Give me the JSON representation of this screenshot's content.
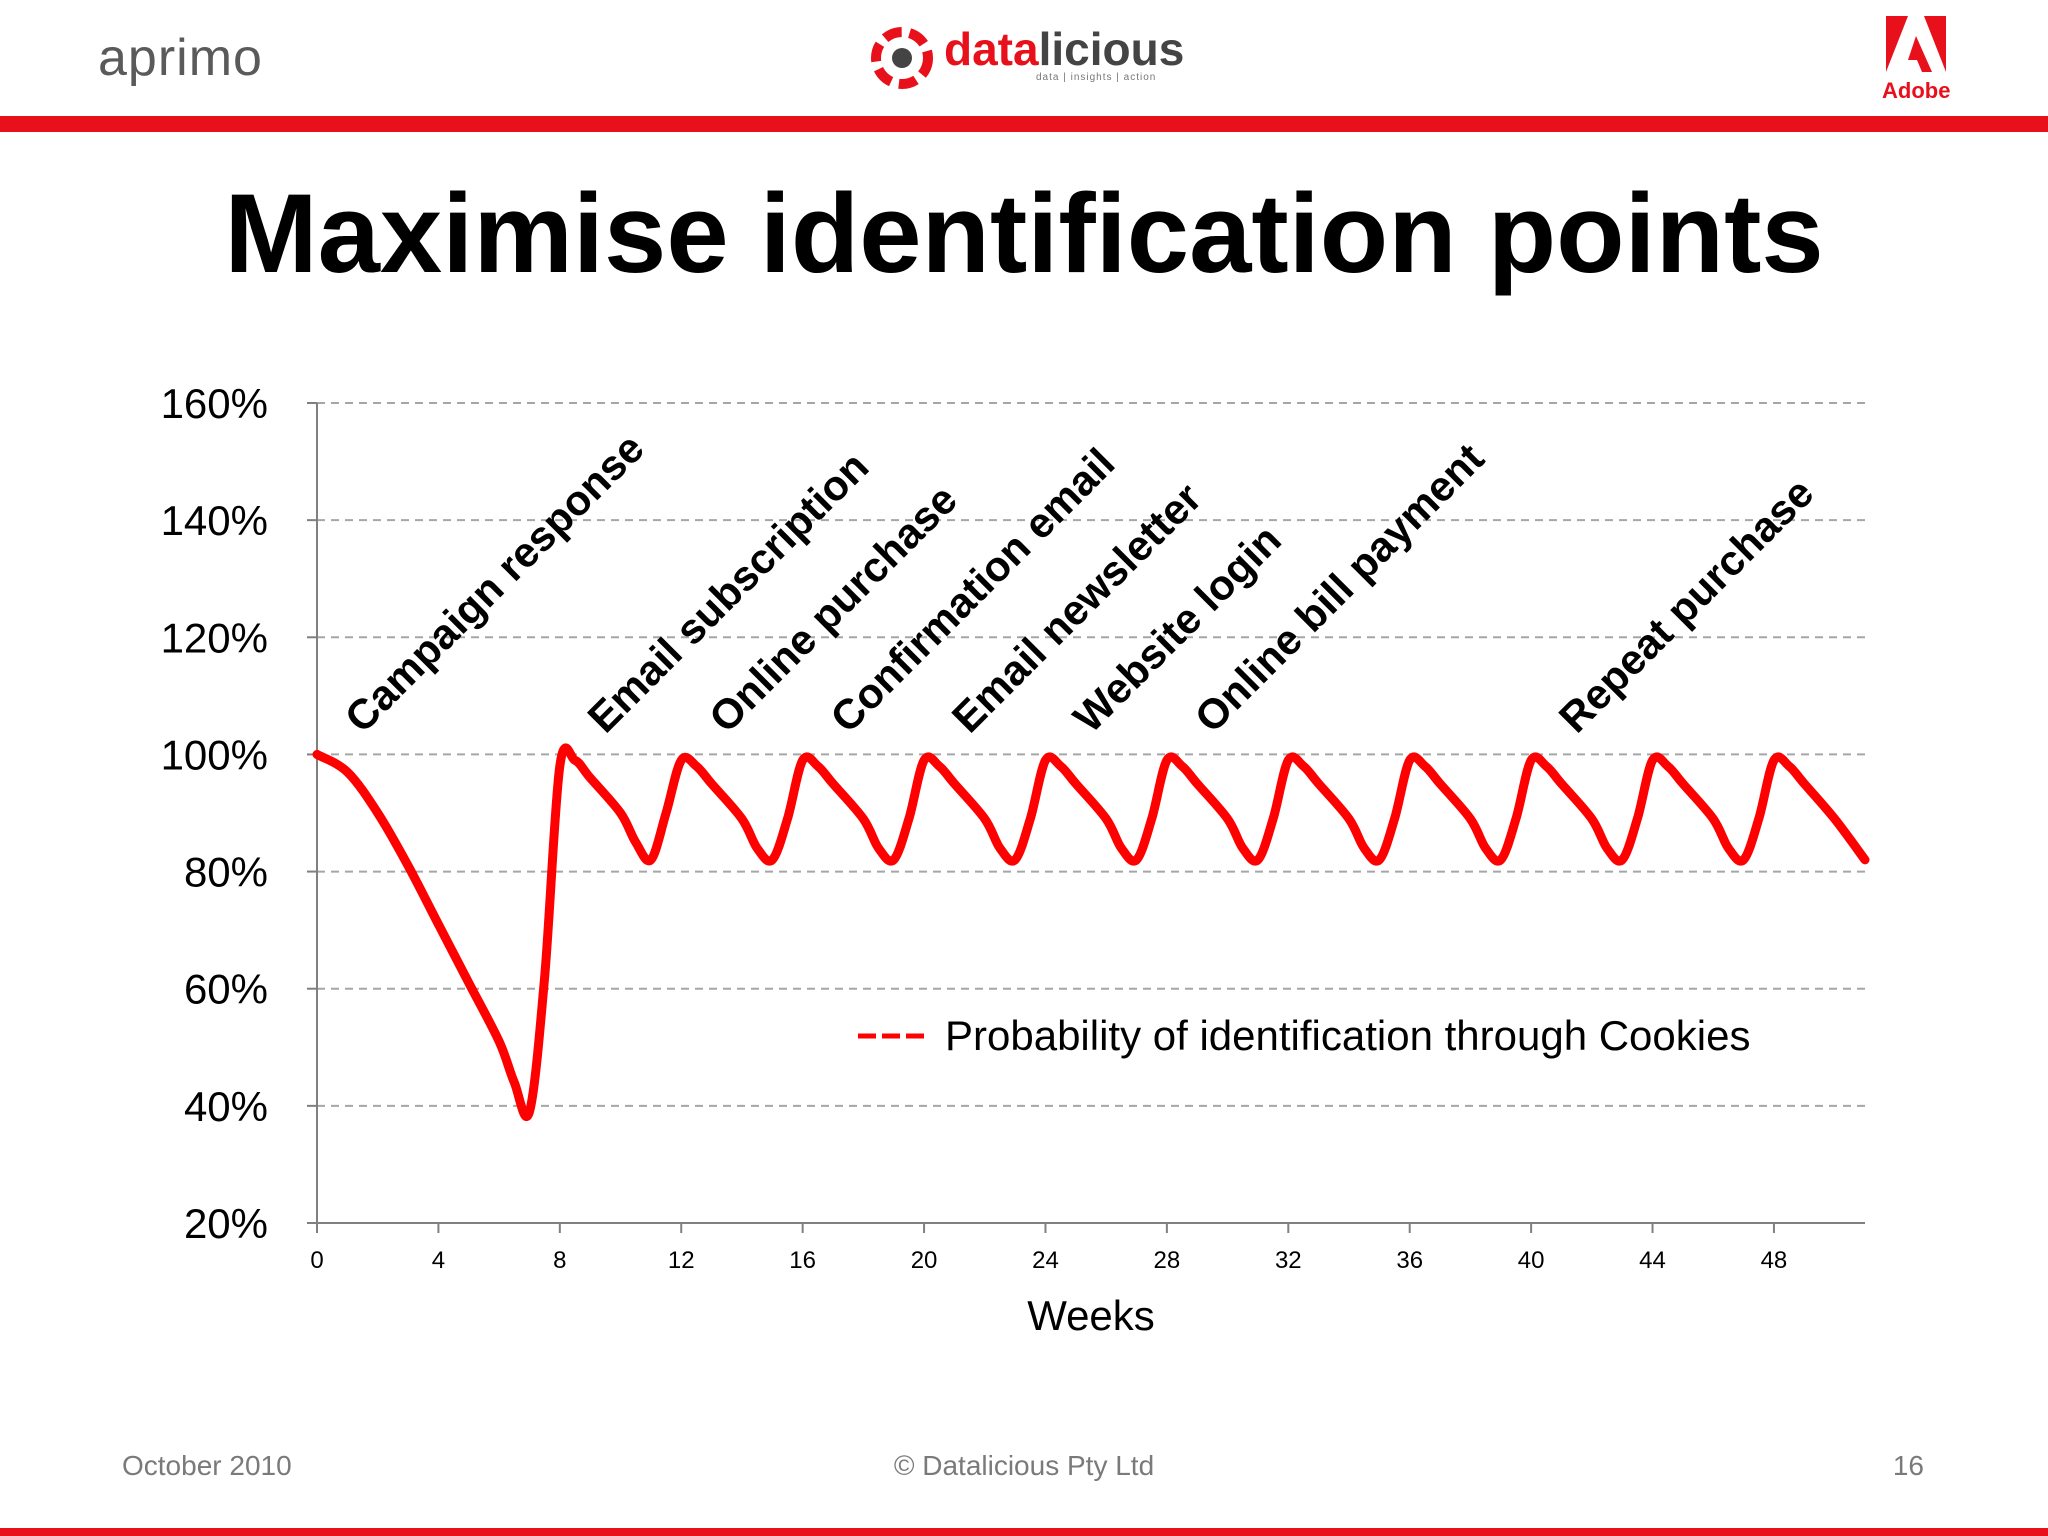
{
  "header": {
    "logo_left": "aprimo",
    "logo_center": "datalicious",
    "logo_center_tagline": "data | insights | action",
    "logo_right": "Adobe"
  },
  "slide": {
    "title": "Maximise identification points"
  },
  "footer": {
    "date": "October 2010",
    "copyright": "© Datalicious Pty Ltd",
    "page": "16"
  },
  "colors": {
    "accent": "#e8111b",
    "series": "#ff0000",
    "grid": "#a6a6a6"
  },
  "chart_data": {
    "type": "line",
    "title": "",
    "xlabel": "Weeks",
    "ylabel": "",
    "xlim": [
      0,
      51
    ],
    "ylim": [
      20,
      160
    ],
    "x_ticks": [
      0,
      4,
      8,
      12,
      16,
      20,
      24,
      28,
      32,
      36,
      40,
      44,
      48
    ],
    "y_ticks": [
      20,
      40,
      60,
      80,
      100,
      120,
      140,
      160
    ],
    "y_tick_labels": [
      "20%",
      "40%",
      "60%",
      "80%",
      "100%",
      "120%",
      "140%",
      "160%"
    ],
    "grid": "horizontal-dashed",
    "legend": {
      "position": "right-center",
      "entries": [
        "Probability of identification through Cookies"
      ]
    },
    "series": [
      {
        "name": "Probability of identification through Cookies",
        "x": [
          0,
          1,
          2,
          3,
          4,
          5,
          6,
          6.5,
          7,
          7.5,
          8,
          8.5,
          9,
          10,
          10.5,
          11,
          11.5,
          12,
          12.5,
          13,
          14,
          14.5,
          15,
          15.5,
          16,
          16.5,
          17,
          18,
          18.5,
          19,
          19.5,
          20,
          20.5,
          21,
          22,
          22.5,
          23,
          23.5,
          24,
          24.5,
          25,
          26,
          26.5,
          27,
          27.5,
          28,
          28.5,
          29,
          30,
          30.5,
          31,
          31.5,
          32,
          32.5,
          33,
          34,
          34.5,
          35,
          35.5,
          36,
          36.5,
          37,
          38,
          38.5,
          39,
          39.5,
          40,
          40.5,
          41,
          42,
          42.5,
          43,
          43.5,
          44,
          44.5,
          45,
          46,
          46.5,
          47,
          47.5,
          48,
          48.5,
          49,
          50,
          51
        ],
        "values": [
          100,
          97,
          90,
          81,
          71,
          61,
          51,
          44,
          39,
          62,
          98,
          99,
          96,
          90,
          85,
          82,
          90,
          99,
          98,
          95,
          89,
          84,
          82,
          89,
          99,
          98,
          95,
          89,
          84,
          82,
          89,
          99,
          98,
          95,
          89,
          84,
          82,
          89,
          99,
          98,
          95,
          89,
          84,
          82,
          89,
          99,
          98,
          95,
          89,
          84,
          82,
          89,
          99,
          98,
          95,
          89,
          84,
          82,
          89,
          99,
          98,
          95,
          89,
          84,
          82,
          89,
          99,
          98,
          95,
          89,
          84,
          82,
          89,
          99,
          98,
          95,
          89,
          84,
          82,
          89,
          99,
          98,
          95,
          89,
          82
        ]
      }
    ],
    "annotations": [
      {
        "text": "Campaign response",
        "x": 1.5
      },
      {
        "text": "Email subscription",
        "x": 9.5
      },
      {
        "text": "Online purchase",
        "x": 13.5
      },
      {
        "text": "Confirmation email",
        "x": 17.5
      },
      {
        "text": "Email newsletter",
        "x": 21.5
      },
      {
        "text": "Website login",
        "x": 25.5
      },
      {
        "text": "Online bill payment",
        "x": 29.5
      },
      {
        "text": "Repeat purchase",
        "x": 41.5
      }
    ]
  }
}
